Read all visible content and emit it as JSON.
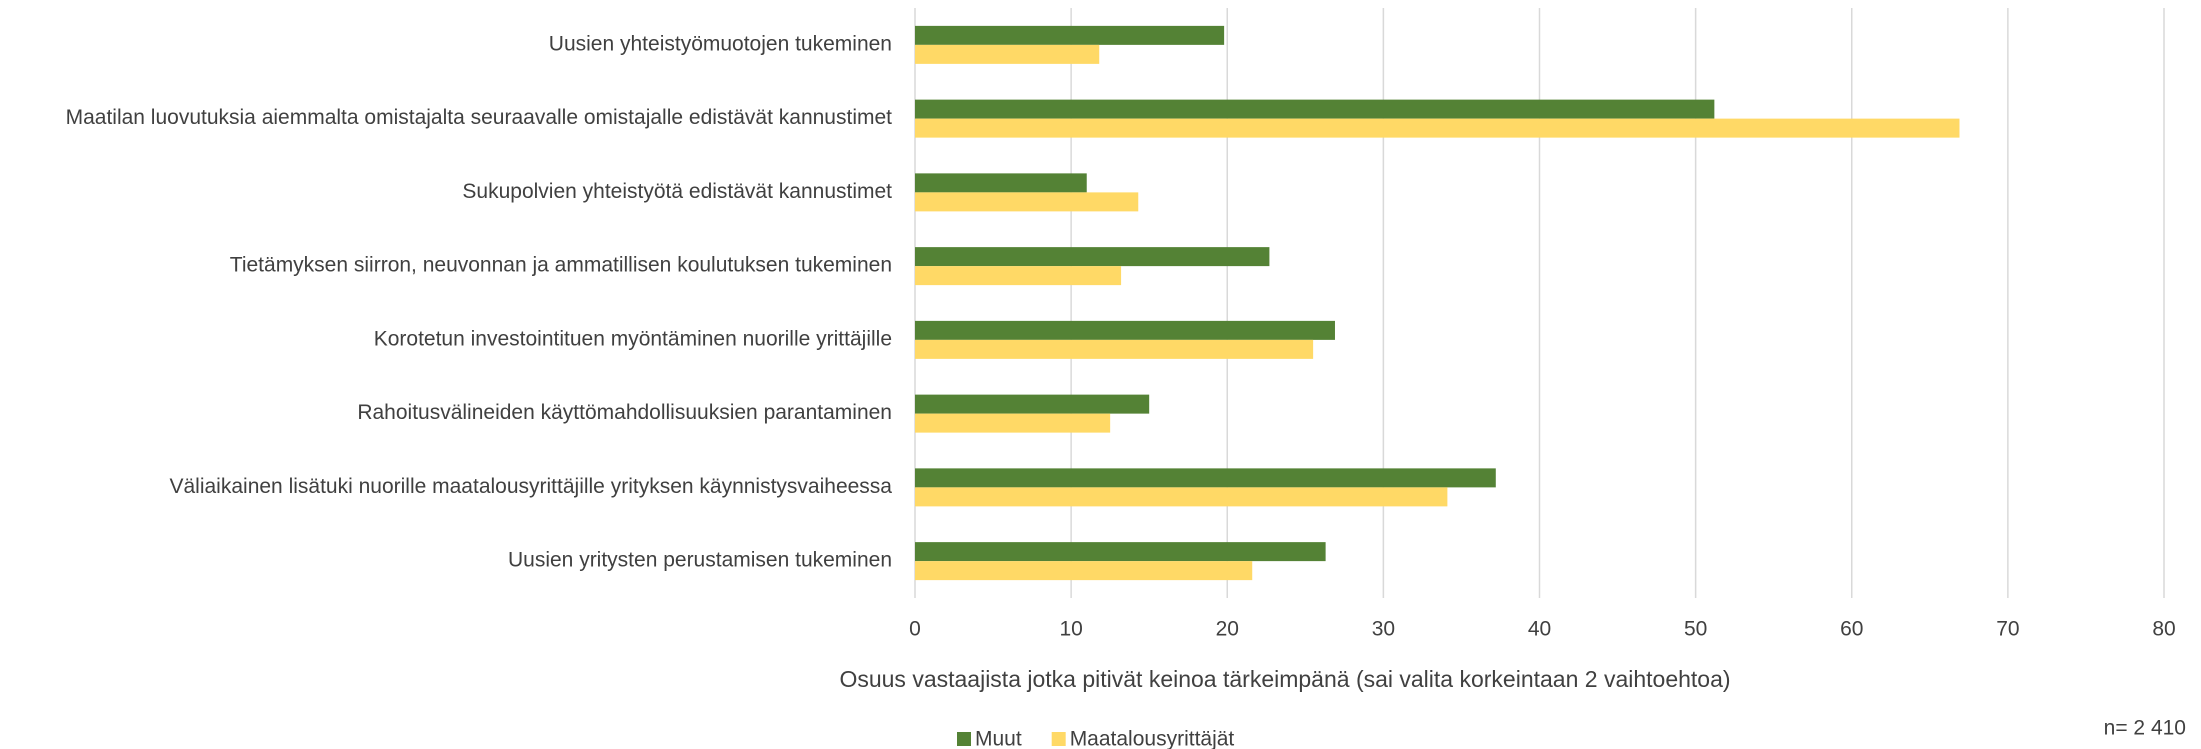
{
  "chart_data": {
    "type": "barh",
    "categories": [
      "Uusien yhteistyömuotojen tukeminen",
      "Maatilan luovutuksia aiemmalta omistajalta seuraavalle omistajalle edistävät kannustimet",
      "Sukupolvien yhteistyötä edistävät kannustimet",
      "Tietämyksen siirron, neuvonnan ja ammatillisen koulutuksen tukeminen",
      "Korotetun investointituen myöntäminen nuorille yrittäjille",
      "Rahoitusvälineiden käyttömahdollisuuksien parantaminen",
      "Väliaikainen lisätuki nuorille maatalousyrittäjille yrityksen käynnistysvaiheessa",
      "Uusien yritysten perustamisen tukeminen"
    ],
    "series": [
      {
        "name": "Muut",
        "color": "#548235",
        "values": [
          19.8,
          51.2,
          11,
          22.7,
          26.9,
          15,
          37.2,
          26.3
        ]
      },
      {
        "name": "Maatalousyrittäjät",
        "color": "#ffd966",
        "values": [
          11.8,
          66.9,
          14.3,
          13.2,
          25.5,
          12.5,
          34.1,
          21.6
        ]
      }
    ],
    "xlim": [
      0,
      80
    ],
    "xticks": [
      0,
      10,
      20,
      30,
      40,
      50,
      60,
      70,
      80
    ],
    "grid": true,
    "x_label": "Osuus vastaajista jotka pitivät keinoa tärkeimpänä (sai valita korkeintaan 2 vaihtoehtoa)",
    "annotation": "n= 2 410",
    "legend": "bottom"
  }
}
